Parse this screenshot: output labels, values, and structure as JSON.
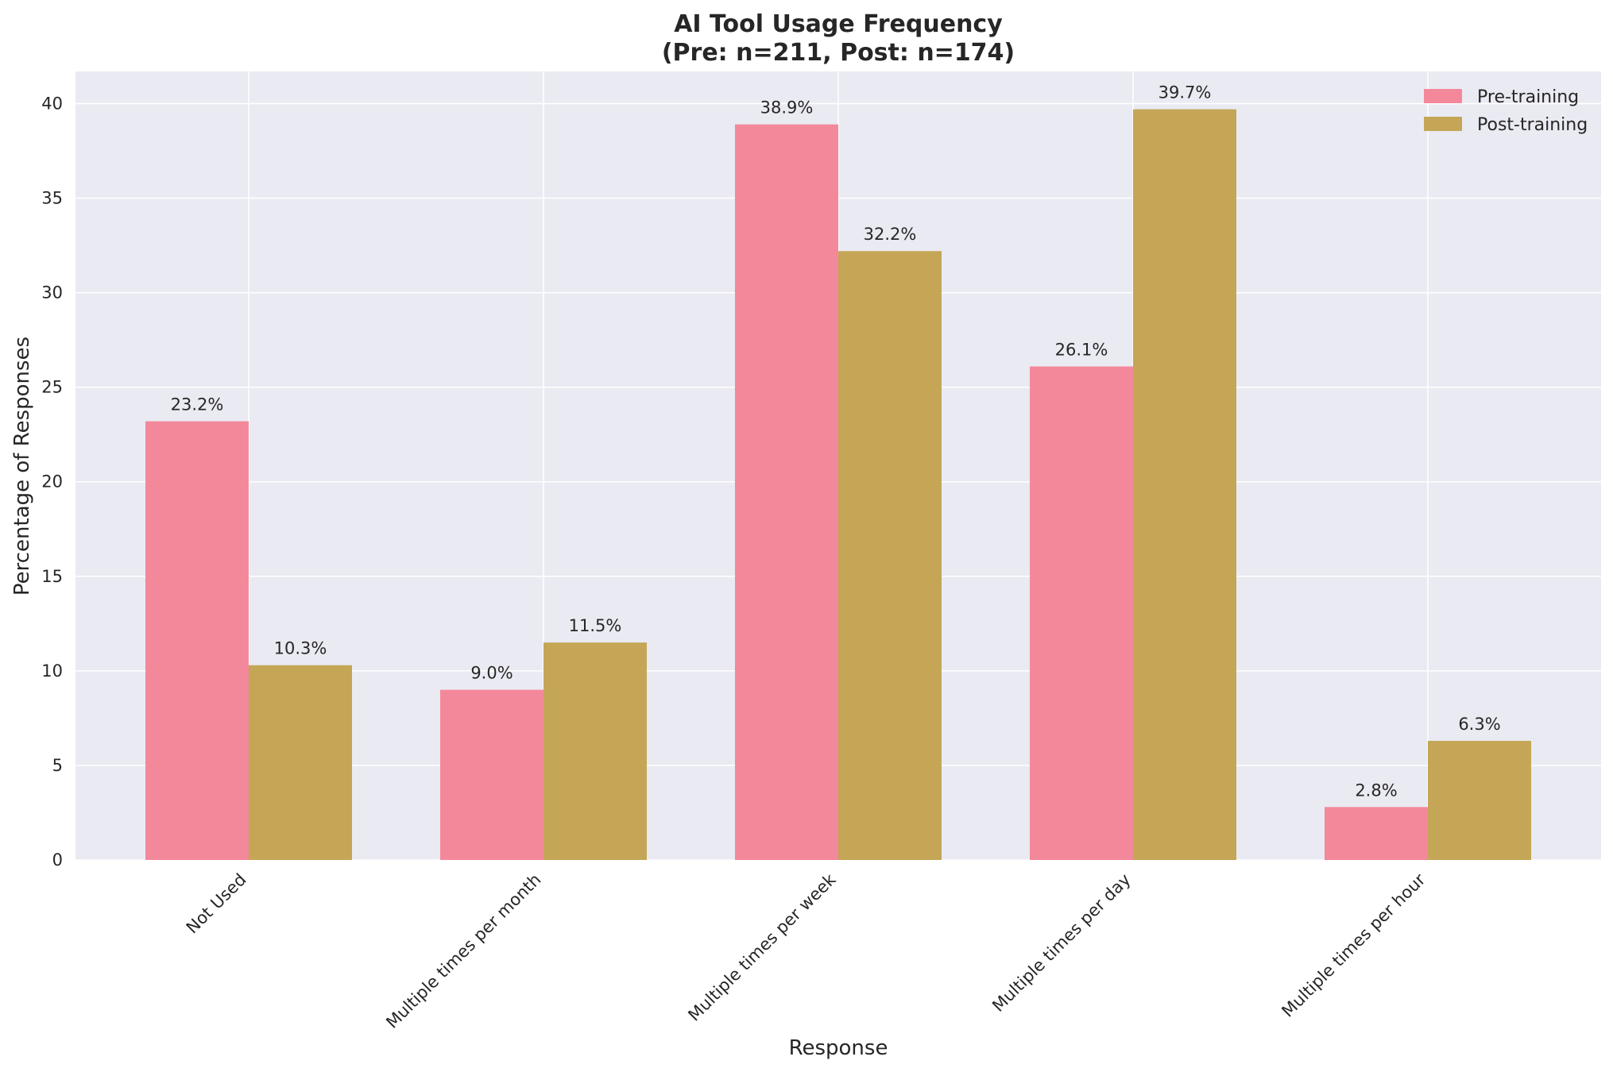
{
  "chart_data": {
    "type": "bar",
    "title": "AI Tool Usage Frequency",
    "subtitle": "(Pre: n=211, Post: n=174)",
    "xlabel": "Response",
    "ylabel": "Percentage of Responses",
    "categories": [
      "Not Used",
      "Multiple times per month",
      "Multiple times per week",
      "Multiple times per day",
      "Multiple times per hour"
    ],
    "series": [
      {
        "name": "Pre-training",
        "values": [
          23.2,
          9.0,
          38.9,
          26.1,
          2.8
        ],
        "labels": [
          "23.2%",
          "9.0%",
          "38.9%",
          "26.1%",
          "2.8%"
        ],
        "color": "#f4889b"
      },
      {
        "name": "Post-training",
        "values": [
          10.3,
          11.5,
          32.2,
          39.7,
          6.3
        ],
        "labels": [
          "10.3%",
          "11.5%",
          "32.2%",
          "39.7%",
          "6.3%"
        ],
        "color": "#c4a656"
      }
    ],
    "yticks": [
      0,
      5,
      10,
      15,
      20,
      25,
      30,
      35,
      40
    ],
    "ytick_labels": [
      "0",
      "5",
      "10",
      "15",
      "20",
      "25",
      "30",
      "35",
      "40"
    ],
    "ylim": [
      0,
      41.7
    ],
    "grid": true,
    "legend_position": "top-right",
    "plot_background": "#eaeaf2"
  }
}
